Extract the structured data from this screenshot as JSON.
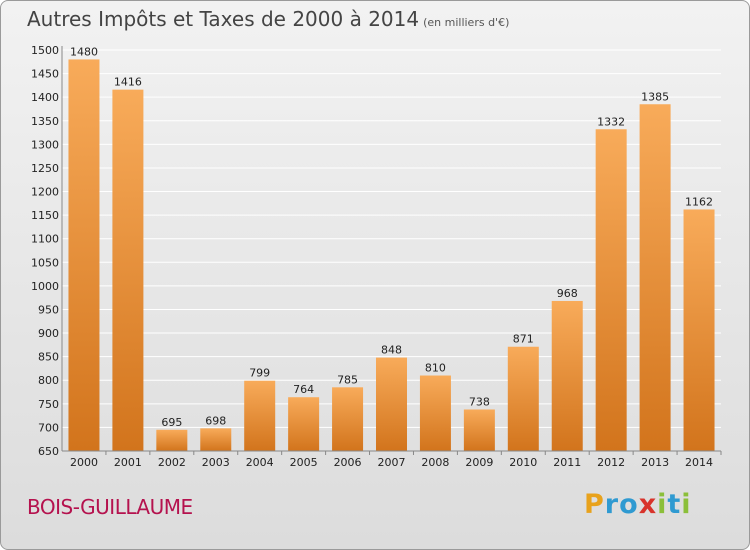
{
  "header": {
    "title": "Autres Impôts et Taxes de 2000 à 2014",
    "unit": "(en milliers d'€)"
  },
  "footer": {
    "town": "BOIS-GUILLAUME",
    "logo_letters": [
      "P",
      "r",
      "o",
      "x",
      "i",
      "t",
      "i"
    ],
    "logo_colors": [
      "#e8a21c",
      "#2f9ad1",
      "#2f9ad1",
      "#d8332b",
      "#8bbf3a",
      "#2f9ad1",
      "#8bbf3a"
    ]
  },
  "colors": {
    "bar_light": "#f8ab5a",
    "bar_dark": "#d2741c",
    "grid": "#ffffff",
    "axis": "#888888"
  },
  "chart_data": {
    "type": "bar",
    "title": "Autres Impôts et Taxes de 2000 à 2014",
    "subtitle": "(en milliers d'€)",
    "xlabel": "",
    "ylabel": "",
    "categories": [
      "2000",
      "2001",
      "2002",
      "2003",
      "2004",
      "2005",
      "2006",
      "2007",
      "2008",
      "2009",
      "2010",
      "2011",
      "2012",
      "2013",
      "2014"
    ],
    "values": [
      1480,
      1416,
      695,
      698,
      799,
      764,
      785,
      848,
      810,
      738,
      871,
      968,
      1332,
      1385,
      1162
    ],
    "ylim": [
      650,
      1500
    ],
    "yticks": [
      650,
      700,
      750,
      800,
      850,
      900,
      950,
      1000,
      1050,
      1100,
      1150,
      1200,
      1250,
      1300,
      1350,
      1400,
      1450,
      1500
    ],
    "grid": true,
    "legend": "none"
  }
}
